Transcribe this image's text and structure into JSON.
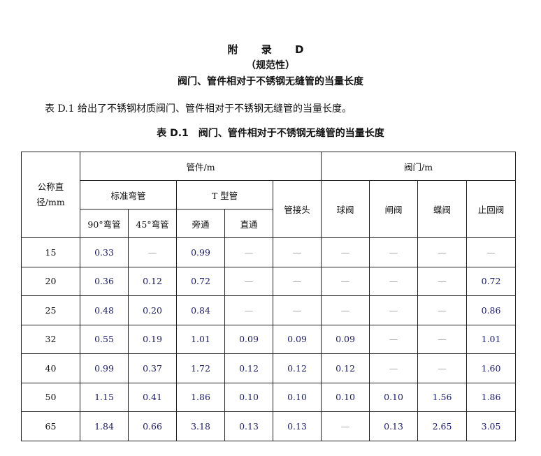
{
  "appendix": "附 录 D",
  "normative": "（规范性）",
  "title": "阀门、管件相对于不锈钢无缝管的当量长度",
  "intro": "表 D.1 给出了不锈钢材质阀门、管件相对于不锈钢无缝管的当量长度。",
  "caption": "表 D.1　阀门、管件相对于不锈钢无缝管的当量长度",
  "headers": {
    "dn": "公称直径/mm",
    "fittings": "管件/m",
    "valves": "阀门/m",
    "elbow": "标准弯管",
    "tee": "T 型管",
    "coupling": "管接头",
    "globe": "球阀",
    "gate": "闸阀",
    "butterfly": "蝶阀",
    "check": "止回阀",
    "e90": "90°弯管",
    "e45": "45°弯管",
    "branch": "旁通",
    "straight": "直通"
  },
  "rows": [
    [
      "15",
      "0.33",
      "—",
      "0.99",
      "—",
      "—",
      "—",
      "—",
      "—",
      "—"
    ],
    [
      "20",
      "0.36",
      "0.12",
      "0.72",
      "—",
      "—",
      "—",
      "—",
      "—",
      "0.72"
    ],
    [
      "25",
      "0.48",
      "0.20",
      "0.84",
      "—",
      "—",
      "—",
      "—",
      "—",
      "0.86"
    ],
    [
      "32",
      "0.55",
      "0.19",
      "1.01",
      "0.09",
      "0.09",
      "0.09",
      "—",
      "—",
      "1.01"
    ],
    [
      "40",
      "0.99",
      "0.37",
      "1.72",
      "0.12",
      "0.12",
      "0.12",
      "—",
      "—",
      "1.60"
    ],
    [
      "50",
      "1.15",
      "0.41",
      "1.86",
      "0.10",
      "0.10",
      "0.10",
      "0.10",
      "1.56",
      "1.86"
    ],
    [
      "65",
      "1.84",
      "0.66",
      "3.18",
      "0.13",
      "0.13",
      "—",
      "0.13",
      "2.65",
      "3.05"
    ]
  ]
}
